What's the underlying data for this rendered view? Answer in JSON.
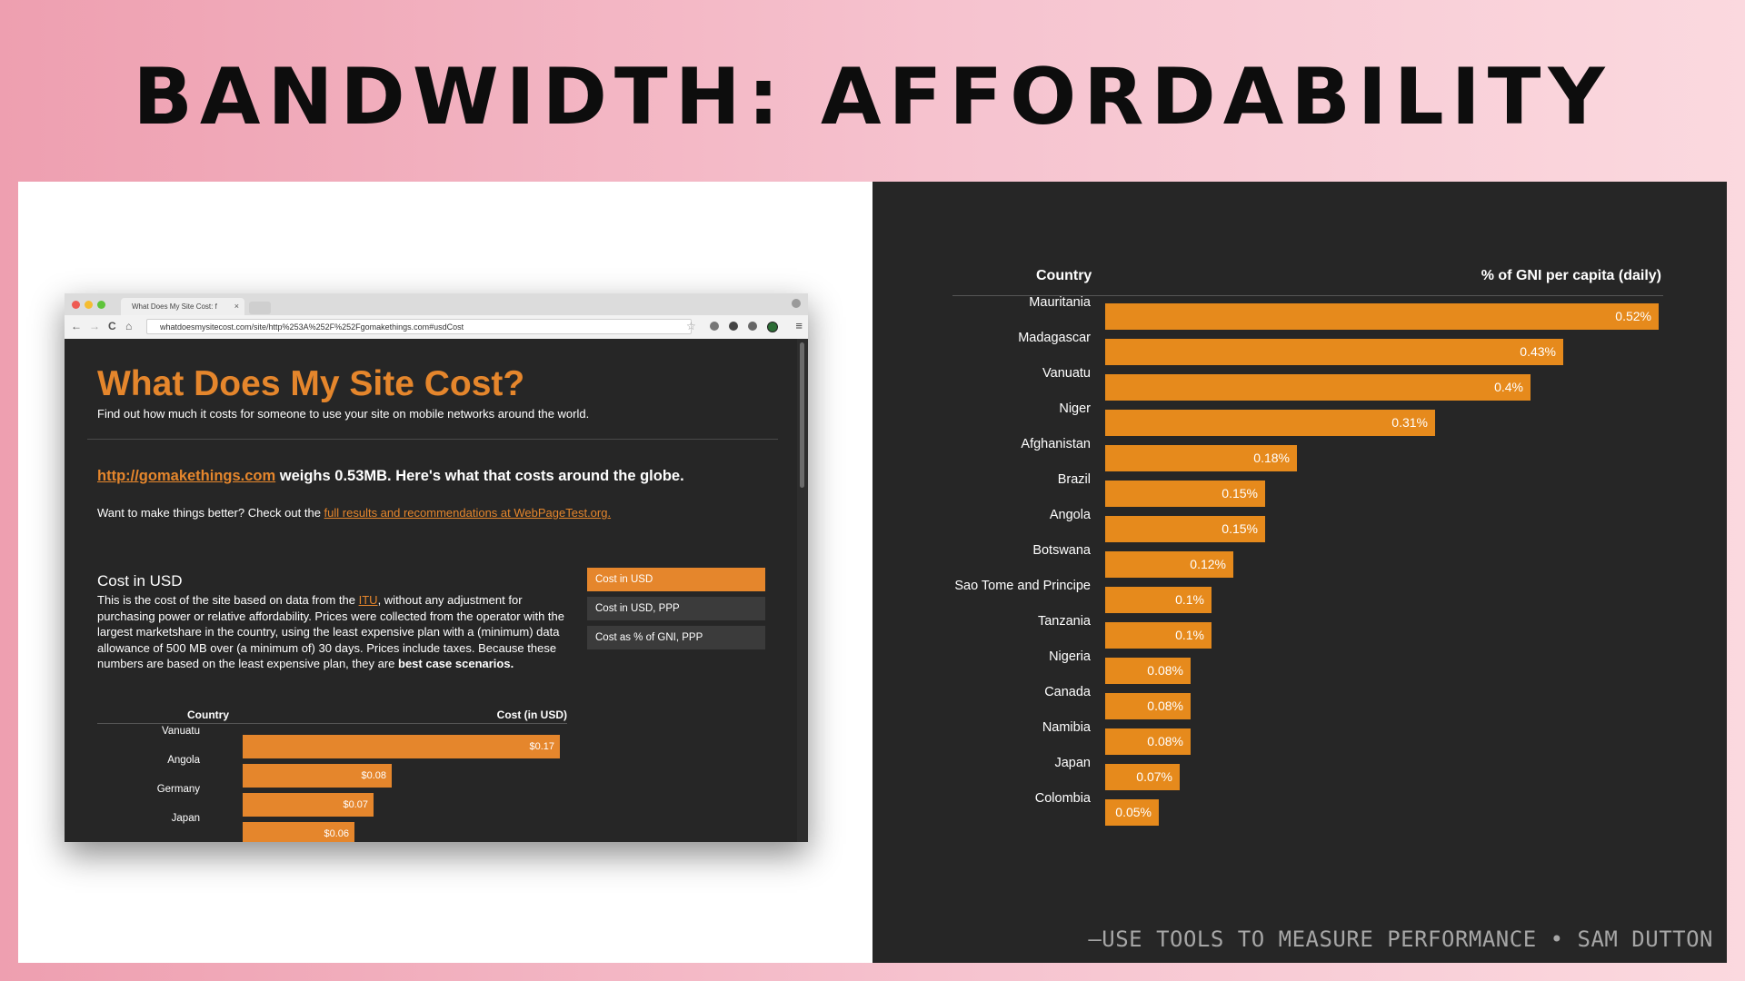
{
  "slide": {
    "title": "BANDWIDTH: AFFORDABILITY",
    "quote": "—USE TOOLS TO MEASURE PERFORMANCE • SAM DUTTON"
  },
  "browser": {
    "tab_title": "What Does My Site Cost: f",
    "tab_close": "×",
    "url": "whatdoesmysitecost.com/site/http%253A%252F%252Fgomakethings.com#usdCost",
    "nav": {
      "back": "←",
      "forward": "→",
      "reload": "C",
      "home": "⌂"
    },
    "icons": [
      "star-icon",
      "extension-icon",
      "gear-icon",
      "shield-icon",
      "globe-icon",
      "menu-icon"
    ]
  },
  "site": {
    "title": "What Does My Site Cost?",
    "subtitle": "Find out how much it costs for someone to use your site on mobile networks around the world.",
    "weighs_link": "http://gomakethings.com",
    "weighs_text": " weighs 0.53MB. Here's what that costs around the globe.",
    "better_text": "Want to make things better? Check out the ",
    "better_link": "full results and recommendations at WebPageTest.org.",
    "section_title": "Cost in USD",
    "para_a": "This is the cost of the site based on data from the ",
    "para_link": "ITU",
    "para_b": ", without any adjustment for purchasing power or relative affordability. Prices were collected from the operator with the largest marketshare in the country, using the least expensive plan with a (minimum) data allowance of 500 MB over (a minimum of) 30 days. Prices include taxes. Because these numbers are based on the least expensive plan, they are ",
    "para_bold": "best case scenarios.",
    "options": [
      "Cost in USD",
      "Cost in USD, PPP",
      "Cost as % of GNI, PPP"
    ],
    "active_option": 0
  },
  "mini_chart": {
    "type": "bar",
    "header_country": "Country",
    "header_value": "Cost (in USD)",
    "categories": [
      "Vanuatu",
      "Angola",
      "Germany",
      "Japan"
    ],
    "values": [
      0.17,
      0.08,
      0.07,
      0.06
    ],
    "labels": [
      "$0.17",
      "$0.08",
      "$0.07",
      "$0.06"
    ],
    "xlim": [
      0,
      0.17
    ],
    "color": "#e5862c"
  },
  "chart_data": {
    "type": "bar",
    "orientation": "horizontal",
    "header_country": "Country",
    "header_value": "% of GNI per capita (daily)",
    "categories": [
      "Mauritania",
      "Madagascar",
      "Vanuatu",
      "Niger",
      "Afghanistan",
      "Brazil",
      "Angola",
      "Botswana",
      "Sao Tome and Principe",
      "Tanzania",
      "Nigeria",
      "Canada",
      "Namibia",
      "Japan",
      "Colombia"
    ],
    "values": [
      0.52,
      0.43,
      0.4,
      0.31,
      0.18,
      0.15,
      0.15,
      0.12,
      0.1,
      0.1,
      0.08,
      0.08,
      0.08,
      0.07,
      0.05
    ],
    "labels": [
      "0.52%",
      "0.43%",
      "0.4%",
      "0.31%",
      "0.18%",
      "0.15%",
      "0.15%",
      "0.12%",
      "0.1%",
      "0.1%",
      "0.08%",
      "0.08%",
      "0.08%",
      "0.07%",
      "0.05%"
    ],
    "xlim": [
      0,
      0.52
    ],
    "color": "#e68a1c"
  }
}
